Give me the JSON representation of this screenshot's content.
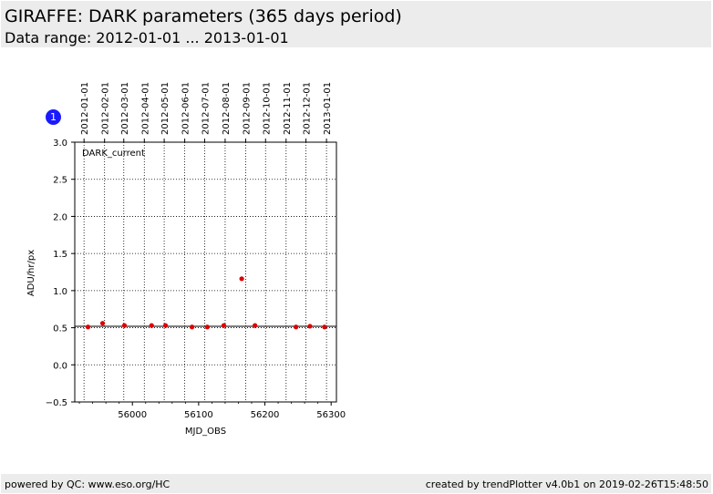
{
  "header": {
    "title": "GIRAFFE: DARK parameters (365 days period)",
    "subtitle": "Data range: 2012-01-01 ... 2013-01-01"
  },
  "footer": {
    "left": "powered by QC: www.eso.org/HC",
    "right": "created by trendPlotter v4.0b1 on 2019-02-26T15:48:50"
  },
  "badge": {
    "label": "1",
    "color": "#1a1aff"
  },
  "chart_data": {
    "type": "scatter",
    "title": "",
    "panel_label": "DARK_current",
    "xlabel": "MJD_OBS",
    "ylabel": "ADU/hr/px",
    "xlim": [
      55913,
      56308
    ],
    "ylim": [
      -0.5,
      3.0
    ],
    "xticks": [
      56000,
      56100,
      56200,
      56300
    ],
    "xtick_labels": [
      "56000",
      "56100",
      "56200",
      "56300"
    ],
    "yticks": [
      -0.5,
      0.0,
      0.5,
      1.0,
      1.5,
      2.0,
      2.5,
      3.0
    ],
    "ytick_labels": [
      "−0.5",
      "0.0",
      "0.5",
      "1.0",
      "1.5",
      "2.0",
      "2.5",
      "3.0"
    ],
    "date_ticks": [
      {
        "mjd": 55927,
        "label": "2012-01-01"
      },
      {
        "mjd": 55958,
        "label": "2012-02-01"
      },
      {
        "mjd": 55987,
        "label": "2012-03-01"
      },
      {
        "mjd": 56018,
        "label": "2012-04-01"
      },
      {
        "mjd": 56048,
        "label": "2012-05-01"
      },
      {
        "mjd": 56079,
        "label": "2012-06-01"
      },
      {
        "mjd": 56109,
        "label": "2012-07-01"
      },
      {
        "mjd": 56140,
        "label": "2012-08-01"
      },
      {
        "mjd": 56171,
        "label": "2012-09-01"
      },
      {
        "mjd": 56201,
        "label": "2012-10-01"
      },
      {
        "mjd": 56232,
        "label": "2012-11-01"
      },
      {
        "mjd": 56262,
        "label": "2012-12-01"
      },
      {
        "mjd": 56293,
        "label": "2013-01-01"
      }
    ],
    "grid": true,
    "reference_line": 0.52,
    "colors": {
      "points": "#dd0000",
      "reference": "#000000",
      "grid": "#000000"
    },
    "series": [
      {
        "x": [
          55933,
          55955,
          55988,
          56029,
          56050,
          56090,
          56113,
          56138,
          56165,
          56185,
          56247,
          56268,
          56290
        ],
        "y": [
          0.51,
          0.56,
          0.53,
          0.53,
          0.53,
          0.51,
          0.51,
          0.53,
          1.16,
          0.53,
          0.51,
          0.52,
          0.51
        ]
      }
    ]
  }
}
